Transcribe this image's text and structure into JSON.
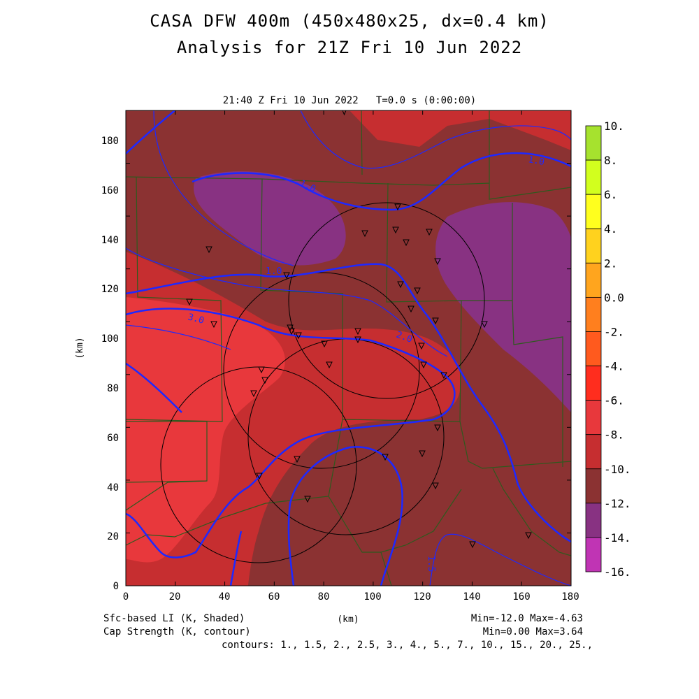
{
  "header": {
    "title_line1": "CASA DFW 400m (450x480x25, dx=0.4 km)",
    "title_line2": "Analysis for 21Z Fri 10 Jun 2022",
    "plot_time": "21:40 Z Fri 10 Jun 2022   T=0.0 s (0:00:00)"
  },
  "axes": {
    "x_label": "(km)",
    "y_label": "(km)",
    "x_ticks": [
      "0",
      "20",
      "40",
      "60",
      "80",
      "100",
      "120",
      "140",
      "160",
      "180"
    ],
    "y_ticks": [
      "0",
      "20",
      "40",
      "60",
      "80",
      "100",
      "120",
      "140",
      "160",
      "180"
    ]
  },
  "footer": {
    "shaded_field": "Sfc-based LI (K, Shaded)",
    "contour_field": "Cap Strength (K, contour)",
    "shaded_minmax": "Min=-12.0 Max=-4.63",
    "contour_minmax": "Min=0.00 Max=3.64",
    "contours": "contours: 1., 1.5, 2., 2.5, 3., 4., 5., 7., 10., 15., 20., 25.,"
  },
  "colorbar": {
    "labels": [
      "10.",
      "8.",
      "6.",
      "4.",
      "2.",
      "0.0",
      "-2.",
      "-4.",
      "-6.",
      "-8.",
      "-10.",
      "-12.",
      "-14.",
      "-16."
    ],
    "colors": [
      "#a6e22e",
      "#d2ff1e",
      "#ffff1e",
      "#ffd21e",
      "#ffa51e",
      "#ff7f1e",
      "#ff5a1e",
      "#ff2d1e",
      "#e8383c",
      "#c62e30",
      "#8b3232",
      "#883282",
      "#c034b4",
      "#dc46dc"
    ]
  },
  "contour_labels": [
    "1.0",
    "1.0",
    "1.0",
    "2.0",
    "3.0",
    "1.5"
  ],
  "map": {
    "colors": {
      "background_shade": "#8b3232",
      "mid_shade": "#c62e30",
      "high_shade": "#e8383c",
      "low_shade": "#883282",
      "contour": "#1e28ff",
      "county_lines": "#2e5a1e",
      "radar_rings": "#000000"
    }
  }
}
